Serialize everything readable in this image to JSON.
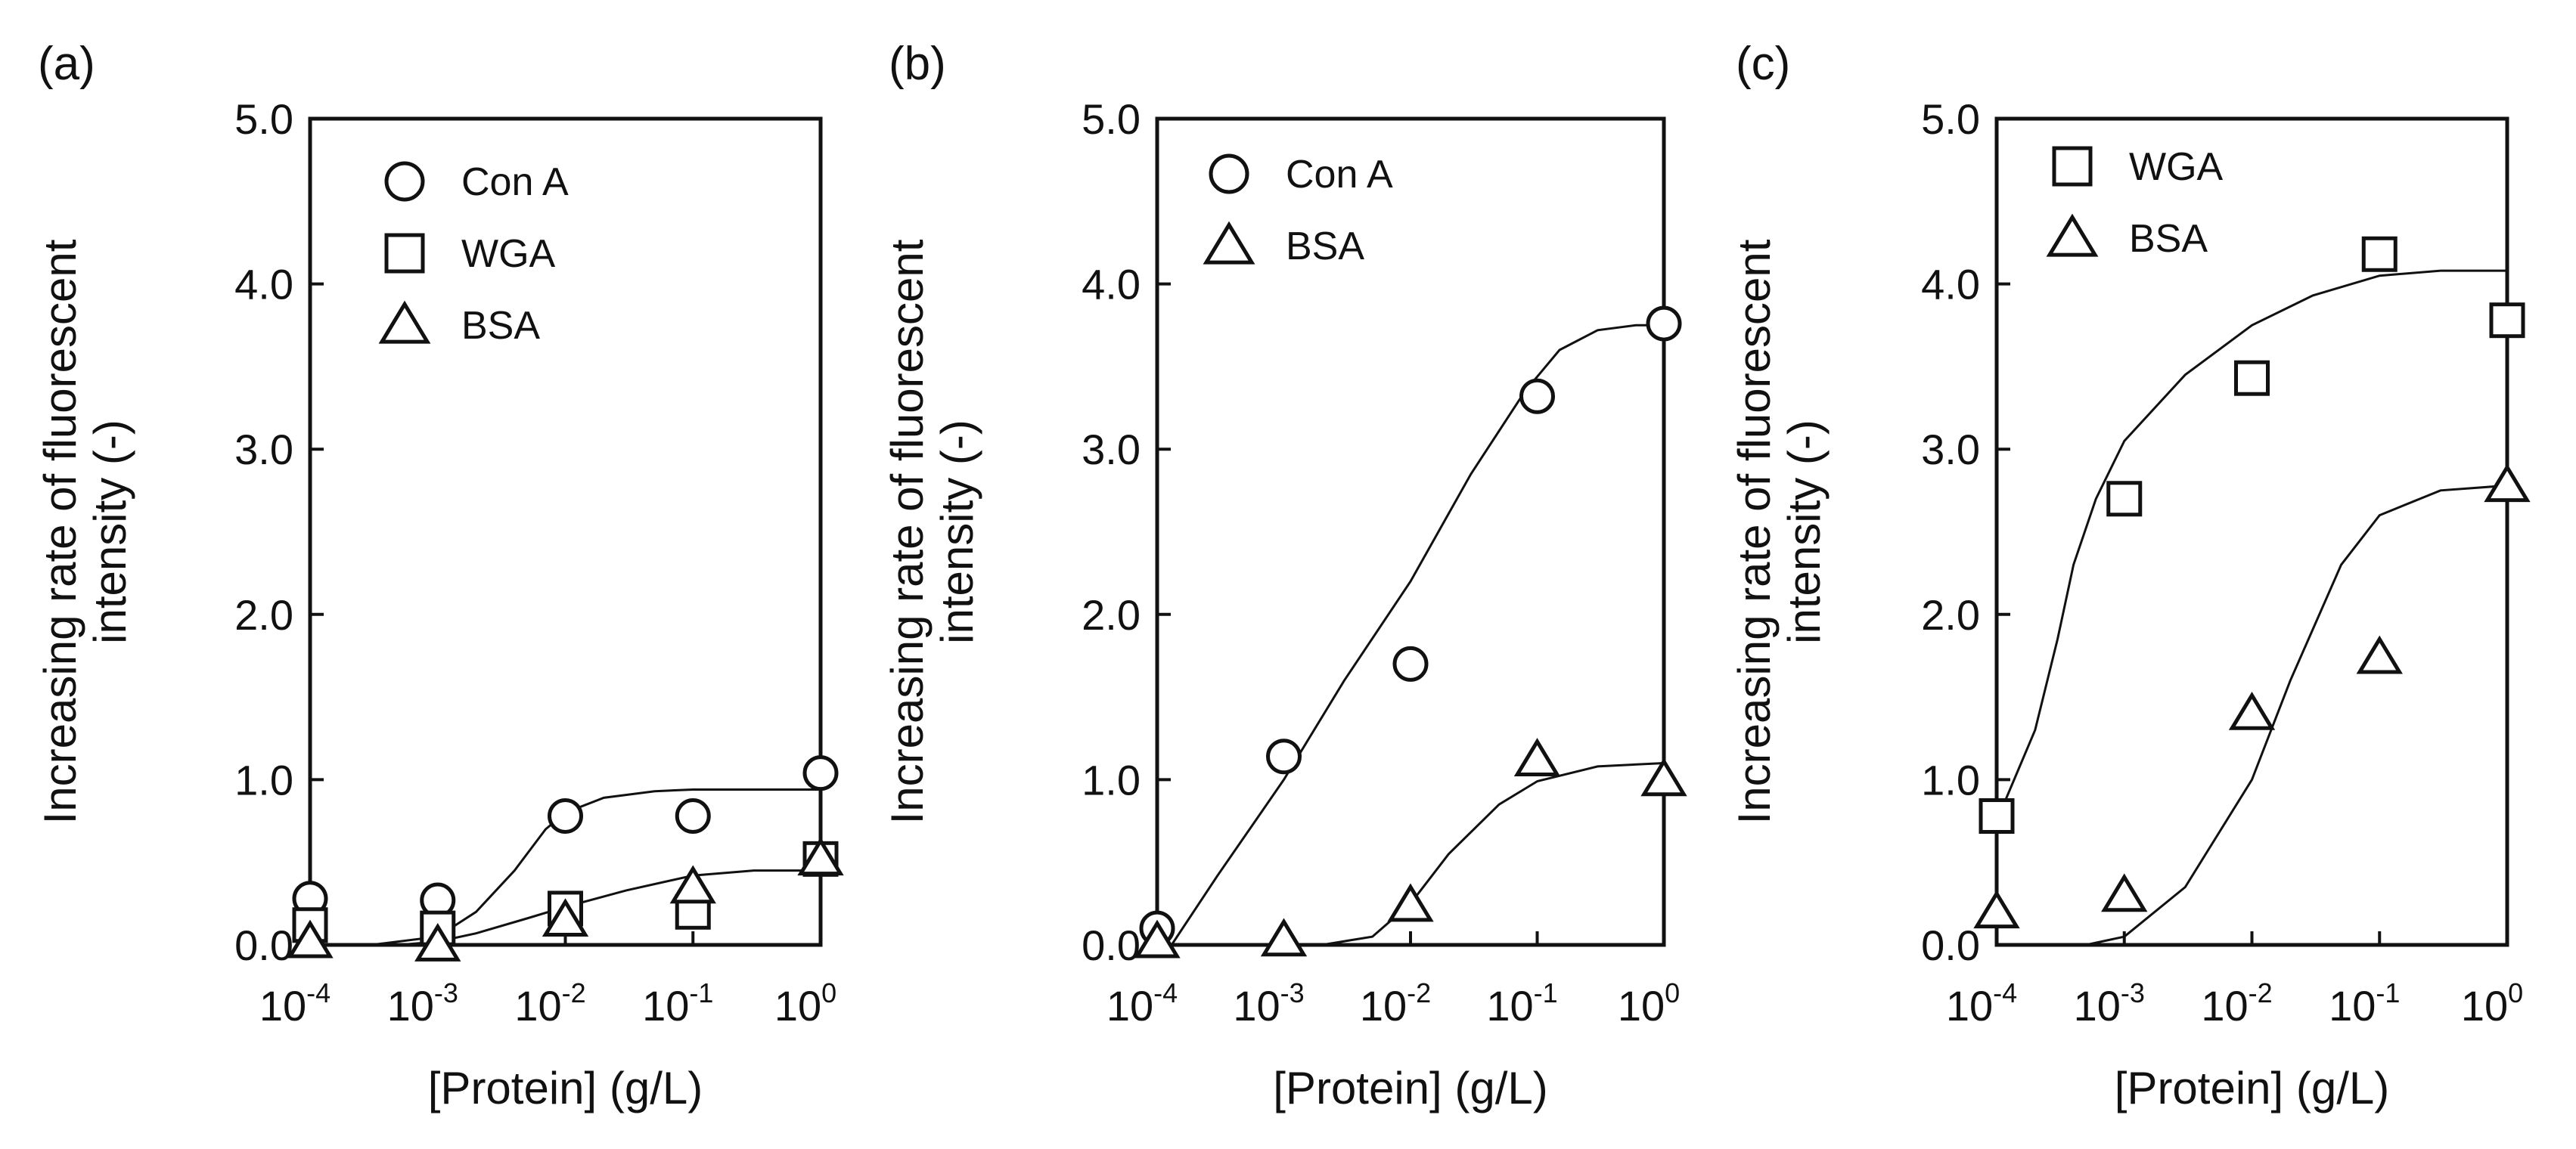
{
  "chart_data": [
    {
      "type": "scatter",
      "panel_label": "(a)",
      "xlabel": "[Protein] (g/L)",
      "ylabel": [
        "Increasing rate of fluorescent",
        "intensity (-)"
      ],
      "xscale": "log",
      "xlim": [
        0.0001,
        1
      ],
      "ylim": [
        0,
        5
      ],
      "yticks": [
        "0.0",
        "1.0",
        "2.0",
        "3.0",
        "4.0",
        "5.0"
      ],
      "xticks": [
        {
          "base": "10",
          "exp": "-4"
        },
        {
          "base": "10",
          "exp": "-3"
        },
        {
          "base": "10",
          "exp": "-2"
        },
        {
          "base": "10",
          "exp": "-1"
        },
        {
          "base": "10",
          "exp": "0"
        }
      ],
      "legend_position": "top-left",
      "series": [
        {
          "name": "Con A",
          "marker": "circle",
          "x": [
            0.0001,
            0.001,
            0.01,
            0.1,
            1
          ],
          "y": [
            0.28,
            0.27,
            0.78,
            0.78,
            1.04
          ],
          "fit": {
            "x": [
              0.0001,
              0.0003,
              0.001,
              0.002,
              0.004,
              0.007,
              0.01,
              0.02,
              0.05,
              0.1,
              0.3,
              1
            ],
            "y": [
              0.0,
              0.0,
              0.05,
              0.2,
              0.45,
              0.7,
              0.8,
              0.89,
              0.93,
              0.94,
              0.94,
              0.94
            ]
          }
        },
        {
          "name": "WGA",
          "marker": "square",
          "x": [
            0.0001,
            0.001,
            0.01,
            0.1,
            1
          ],
          "y": [
            0.12,
            0.1,
            0.22,
            0.2,
            0.52
          ],
          "fit": {
            "x": [
              0.0001,
              0.0005,
              0.001,
              0.002,
              0.005,
              0.01,
              0.03,
              0.1,
              0.3,
              1
            ],
            "y": [
              0.0,
              0.0,
              0.02,
              0.07,
              0.16,
              0.23,
              0.33,
              0.42,
              0.45,
              0.45
            ]
          }
        },
        {
          "name": "BSA",
          "marker": "triangle",
          "x": [
            0.0001,
            0.001,
            0.01,
            0.1,
            1
          ],
          "y": [
            0.02,
            0.0,
            0.15,
            0.35,
            0.52
          ],
          "fit": null
        }
      ]
    },
    {
      "type": "scatter",
      "panel_label": "(b)",
      "xlabel": "[Protein] (g/L)",
      "ylabel": [
        "Increasing rate of fluorescent",
        "intensity (-)"
      ],
      "xscale": "log",
      "xlim": [
        0.0001,
        1
      ],
      "ylim": [
        0,
        5
      ],
      "yticks": [
        "0.0",
        "1.0",
        "2.0",
        "3.0",
        "4.0",
        "5.0"
      ],
      "xticks": [
        {
          "base": "10",
          "exp": "-4"
        },
        {
          "base": "10",
          "exp": "-3"
        },
        {
          "base": "10",
          "exp": "-2"
        },
        {
          "base": "10",
          "exp": "-1"
        },
        {
          "base": "10",
          "exp": "0"
        }
      ],
      "legend_position": "top-left",
      "series": [
        {
          "name": "Con A",
          "marker": "circle",
          "x": [
            0.0001,
            0.001,
            0.01,
            0.1,
            1
          ],
          "y": [
            0.1,
            1.14,
            1.7,
            3.32,
            3.76
          ],
          "fit": {
            "x": [
              0.00013,
              0.0003,
              0.001,
              0.003,
              0.01,
              0.03,
              0.08,
              0.15,
              0.3,
              0.6,
              1
            ],
            "y": [
              0.0,
              0.42,
              1.0,
              1.6,
              2.2,
              2.85,
              3.35,
              3.6,
              3.72,
              3.75,
              3.75
            ]
          }
        },
        {
          "name": "BSA",
          "marker": "triangle",
          "x": [
            0.0001,
            0.001,
            0.01,
            0.1,
            1
          ],
          "y": [
            0.02,
            0.03,
            0.24,
            1.12,
            1.0
          ],
          "fit": {
            "x": [
              0.0001,
              0.002,
              0.005,
              0.01,
              0.02,
              0.05,
              0.1,
              0.3,
              1
            ],
            "y": [
              0.0,
              0.0,
              0.05,
              0.25,
              0.55,
              0.85,
              0.99,
              1.08,
              1.1
            ]
          }
        }
      ]
    },
    {
      "type": "scatter",
      "panel_label": "(c)",
      "xlabel": "[Protein] (g/L)",
      "ylabel": [
        "Increasing rate of fluorescent",
        "intensity (-)"
      ],
      "xscale": "log",
      "xlim": [
        0.0001,
        1
      ],
      "ylim": [
        0,
        5
      ],
      "yticks": [
        "0.0",
        "1.0",
        "2.0",
        "3.0",
        "4.0",
        "5.0"
      ],
      "xticks": [
        {
          "base": "10",
          "exp": "-4"
        },
        {
          "base": "10",
          "exp": "-3"
        },
        {
          "base": "10",
          "exp": "-2"
        },
        {
          "base": "10",
          "exp": "-1"
        },
        {
          "base": "10",
          "exp": "0"
        }
      ],
      "legend_position": "top-left",
      "series": [
        {
          "name": "WGA",
          "marker": "square",
          "x": [
            0.0001,
            0.001,
            0.01,
            0.1,
            1
          ],
          "y": [
            0.78,
            2.7,
            3.43,
            4.18,
            3.78
          ],
          "fit": {
            "x": [
              0.0001,
              0.0002,
              0.0003,
              0.0004,
              0.0006,
              0.001,
              0.003,
              0.01,
              0.03,
              0.1,
              0.3,
              1
            ],
            "y": [
              0.75,
              1.3,
              1.85,
              2.3,
              2.7,
              3.05,
              3.45,
              3.75,
              3.93,
              4.05,
              4.08,
              4.08
            ]
          }
        },
        {
          "name": "BSA",
          "marker": "triangle",
          "x": [
            0.0001,
            0.001,
            0.01,
            0.1,
            1
          ],
          "y": [
            0.2,
            0.3,
            1.4,
            1.74,
            2.78
          ],
          "fit": {
            "x": [
              0.0002,
              0.0005,
              0.001,
              0.003,
              0.01,
              0.02,
              0.05,
              0.1,
              0.3,
              1
            ],
            "y": [
              0.0,
              0.0,
              0.05,
              0.35,
              1.0,
              1.6,
              2.3,
              2.6,
              2.75,
              2.78
            ]
          }
        }
      ]
    }
  ]
}
